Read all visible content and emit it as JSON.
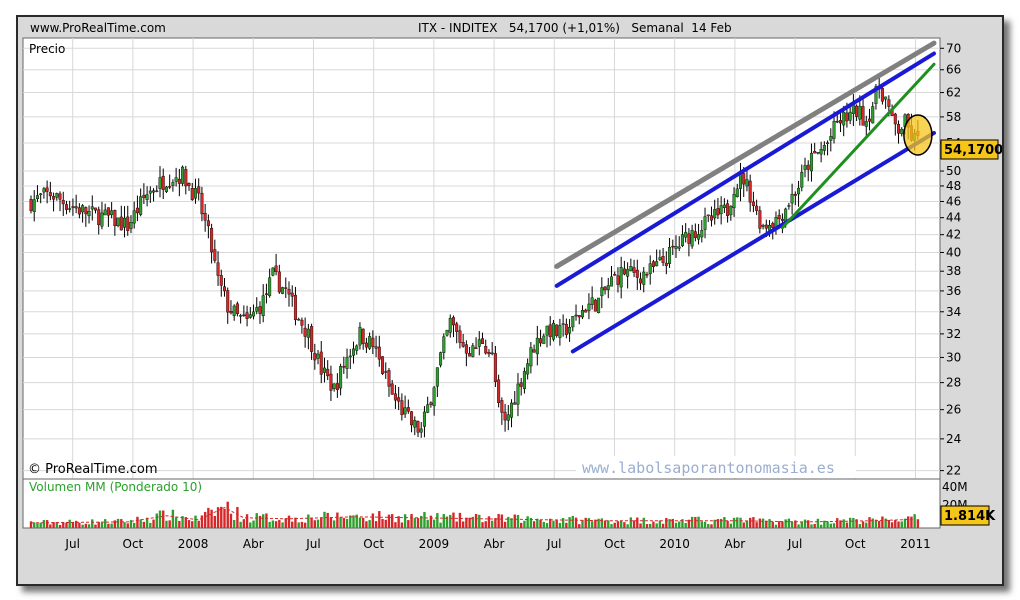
{
  "header": {
    "site": "www.ProRealTime.com",
    "instrument": "ITX - INDITEX   54,1700 (+1,01%)   Semanal  14 Feb"
  },
  "price_panel": {
    "label": "Precio",
    "copyright": "© ProRealTime.com",
    "watermark": "www.labolsaporantonomasia.es",
    "last_price_tag": "54,1700"
  },
  "volume_panel": {
    "label": "Volumen MM (Ponderado 10)",
    "volume_tag": "1.814K"
  },
  "colors": {
    "up": "#2ca02c",
    "down": "#d62728",
    "channel_blue": "#1a1ad6",
    "resistance_gray": "#808080",
    "support_green": "#1f8f1f",
    "highlight_yellow": "#f5c518"
  },
  "chart_data": {
    "type": "candlestick",
    "interval": "weekly",
    "title": "ITX - INDITEX",
    "last_value": 54.17,
    "change_percent": "+1,01%",
    "date_label": "14 Feb",
    "y_axis": {
      "ticks": [
        22,
        24,
        26,
        28,
        30,
        32,
        34,
        36,
        38,
        40,
        42,
        44,
        46,
        48,
        50,
        54,
        58,
        62,
        66,
        70
      ],
      "range": [
        21.5,
        72
      ],
      "scale": "log"
    },
    "x_axis": {
      "ticks": [
        "Jul",
        "Oct",
        "2008",
        "Abr",
        "Jul",
        "Oct",
        "2009",
        "Abr",
        "Jul",
        "Oct",
        "2010",
        "Abr",
        "Jul",
        "Oct",
        "2011"
      ]
    },
    "volume_axis": {
      "ticks": [
        "40M",
        "20M"
      ]
    },
    "grid": true,
    "price_path": [
      [
        0,
        46
      ],
      [
        6,
        47
      ],
      [
        12,
        45.5
      ],
      [
        18,
        44.5
      ],
      [
        24,
        44
      ],
      [
        30,
        43
      ],
      [
        36,
        47
      ],
      [
        42,
        49
      ],
      [
        47,
        49.5
      ],
      [
        52,
        46
      ],
      [
        55,
        42
      ],
      [
        58,
        37
      ],
      [
        61,
        34.5
      ],
      [
        64,
        33.5
      ],
      [
        67,
        33
      ],
      [
        72,
        35
      ],
      [
        75,
        37.5
      ],
      [
        79,
        36
      ],
      [
        82,
        34
      ],
      [
        86,
        32
      ],
      [
        90,
        29
      ],
      [
        94,
        27.5
      ],
      [
        98,
        30
      ],
      [
        102,
        32
      ],
      [
        106,
        31
      ],
      [
        109,
        29
      ],
      [
        112,
        27
      ],
      [
        115,
        26
      ],
      [
        118,
        25
      ],
      [
        121,
        24.5
      ],
      [
        124,
        27
      ],
      [
        127,
        30
      ],
      [
        130,
        33
      ],
      [
        134,
        31
      ],
      [
        137,
        30.5
      ],
      [
        140,
        31.5
      ],
      [
        143,
        30
      ],
      [
        145,
        26
      ],
      [
        147,
        25
      ],
      [
        150,
        27
      ],
      [
        153,
        29
      ],
      [
        156,
        31
      ],
      [
        160,
        32.5
      ],
      [
        164,
        32
      ],
      [
        168,
        33
      ],
      [
        172,
        34.5
      ],
      [
        176,
        35
      ],
      [
        180,
        37
      ],
      [
        184,
        38
      ],
      [
        188,
        37.5
      ],
      [
        192,
        38
      ],
      [
        196,
        39
      ],
      [
        200,
        40.5
      ],
      [
        204,
        42
      ],
      [
        208,
        43
      ],
      [
        212,
        44
      ],
      [
        216,
        45
      ],
      [
        218,
        48
      ],
      [
        221,
        49
      ],
      [
        223,
        47
      ],
      [
        225,
        44.5
      ],
      [
        227,
        43
      ],
      [
        229,
        43.5
      ],
      [
        232,
        44
      ],
      [
        235,
        46
      ],
      [
        238,
        48
      ],
      [
        241,
        51
      ],
      [
        244,
        52.5
      ],
      [
        247,
        54
      ],
      [
        250,
        57
      ],
      [
        253,
        58
      ],
      [
        256,
        59
      ],
      [
        259,
        57.5
      ],
      [
        261,
        60
      ],
      [
        263,
        63
      ],
      [
        265,
        61
      ],
      [
        267,
        57
      ],
      [
        269,
        56
      ],
      [
        271,
        57
      ],
      [
        273,
        55
      ],
      [
        275,
        54.17
      ]
    ],
    "volume_profile": [
      [
        0,
        5
      ],
      [
        30,
        6
      ],
      [
        42,
        12
      ],
      [
        52,
        8
      ],
      [
        56,
        14
      ],
      [
        60,
        20
      ],
      [
        66,
        10
      ],
      [
        80,
        9
      ],
      [
        100,
        11
      ],
      [
        120,
        10
      ],
      [
        140,
        9
      ],
      [
        160,
        8
      ],
      [
        180,
        7
      ],
      [
        200,
        7
      ],
      [
        220,
        7
      ],
      [
        240,
        6
      ],
      [
        260,
        7
      ],
      [
        270,
        8
      ],
      [
        275,
        9
      ]
    ],
    "volume_max": 45,
    "trendlines": [
      {
        "name": "channel-upper",
        "color": "blue",
        "from": [
          163,
          36.5
        ],
        "to": [
          280,
          69
        ]
      },
      {
        "name": "channel-lower",
        "color": "blue",
        "from": [
          168,
          30.5
        ],
        "to": [
          280,
          55.5
        ]
      },
      {
        "name": "upper-resistance",
        "color": "gray",
        "from": [
          163,
          38.5
        ],
        "to": [
          280,
          71
        ]
      },
      {
        "name": "support-green",
        "color": "green",
        "from": [
          233,
          42.8
        ],
        "to": [
          280,
          67
        ]
      }
    ],
    "highlight": {
      "x": 275,
      "y": 55.2
    }
  }
}
